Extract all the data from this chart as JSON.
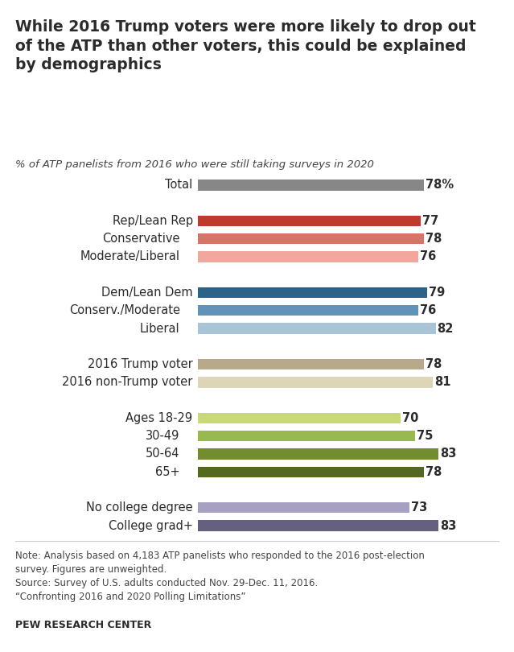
{
  "title": "While 2016 Trump voters were more likely to drop out\nof the ATP than other voters, this could be explained\nby demographics",
  "subtitle": "% of ATP panelists from 2016 who were still taking surveys in 2020",
  "note_line1": "Note: Analysis based on 4,183 ATP panelists who responded to the 2016 post-election",
  "note_line2": "survey. Figures are unweighted.",
  "note_line3": "Source: Survey of U.S. adults conducted Nov. 29-Dec. 11, 2016.",
  "note_line4": "“Confronting 2016 and 2020 Polling Limitations”",
  "source_bold": "PEW RESEARCH CENTER",
  "bars": [
    {
      "label": "Total",
      "value": 78,
      "color": "#878787",
      "indent": false,
      "val_label": "78%"
    },
    {
      "label": "",
      "value": -1,
      "color": "none",
      "indent": false,
      "val_label": ""
    },
    {
      "label": "Rep/Lean Rep",
      "value": 77,
      "color": "#be3a2d",
      "indent": false,
      "val_label": "77"
    },
    {
      "label": "Conservative",
      "value": 78,
      "color": "#d47567",
      "indent": true,
      "val_label": "78"
    },
    {
      "label": "Moderate/Liberal",
      "value": 76,
      "color": "#f0a89e",
      "indent": true,
      "val_label": "76"
    },
    {
      "label": "",
      "value": -1,
      "color": "none",
      "indent": false,
      "val_label": ""
    },
    {
      "label": "Dem/Lean Dem",
      "value": 79,
      "color": "#2e6388",
      "indent": false,
      "val_label": "79"
    },
    {
      "label": "Conserv./Moderate",
      "value": 76,
      "color": "#6192b8",
      "indent": true,
      "val_label": "76"
    },
    {
      "label": "Liberal",
      "value": 82,
      "color": "#a8c5d8",
      "indent": true,
      "val_label": "82"
    },
    {
      "label": "",
      "value": -1,
      "color": "none",
      "indent": false,
      "val_label": ""
    },
    {
      "label": "2016 Trump voter",
      "value": 78,
      "color": "#b8a98a",
      "indent": false,
      "val_label": "78"
    },
    {
      "label": "2016 non-Trump voter",
      "value": 81,
      "color": "#ddd5b8",
      "indent": false,
      "val_label": "81"
    },
    {
      "label": "",
      "value": -1,
      "color": "none",
      "indent": false,
      "val_label": ""
    },
    {
      "label": "Ages 18-29",
      "value": 70,
      "color": "#c8d87a",
      "indent": false,
      "val_label": "70"
    },
    {
      "label": "30-49",
      "value": 75,
      "color": "#98b850",
      "indent": true,
      "val_label": "75"
    },
    {
      "label": "50-64",
      "value": 83,
      "color": "#748c30",
      "indent": true,
      "val_label": "83"
    },
    {
      "label": "65+",
      "value": 78,
      "color": "#546820",
      "indent": true,
      "val_label": "78"
    },
    {
      "label": "",
      "value": -1,
      "color": "none",
      "indent": false,
      "val_label": ""
    },
    {
      "label": "No college degree",
      "value": 73,
      "color": "#a8a0c0",
      "indent": false,
      "val_label": "73"
    },
    {
      "label": "College grad+",
      "value": 83,
      "color": "#666080",
      "indent": false,
      "val_label": "83"
    }
  ],
  "max_value": 86,
  "background_color": "#ffffff",
  "text_color": "#2b2b2b",
  "bar_height": 0.6,
  "label_fontsize": 10.5,
  "value_fontsize": 10.5
}
